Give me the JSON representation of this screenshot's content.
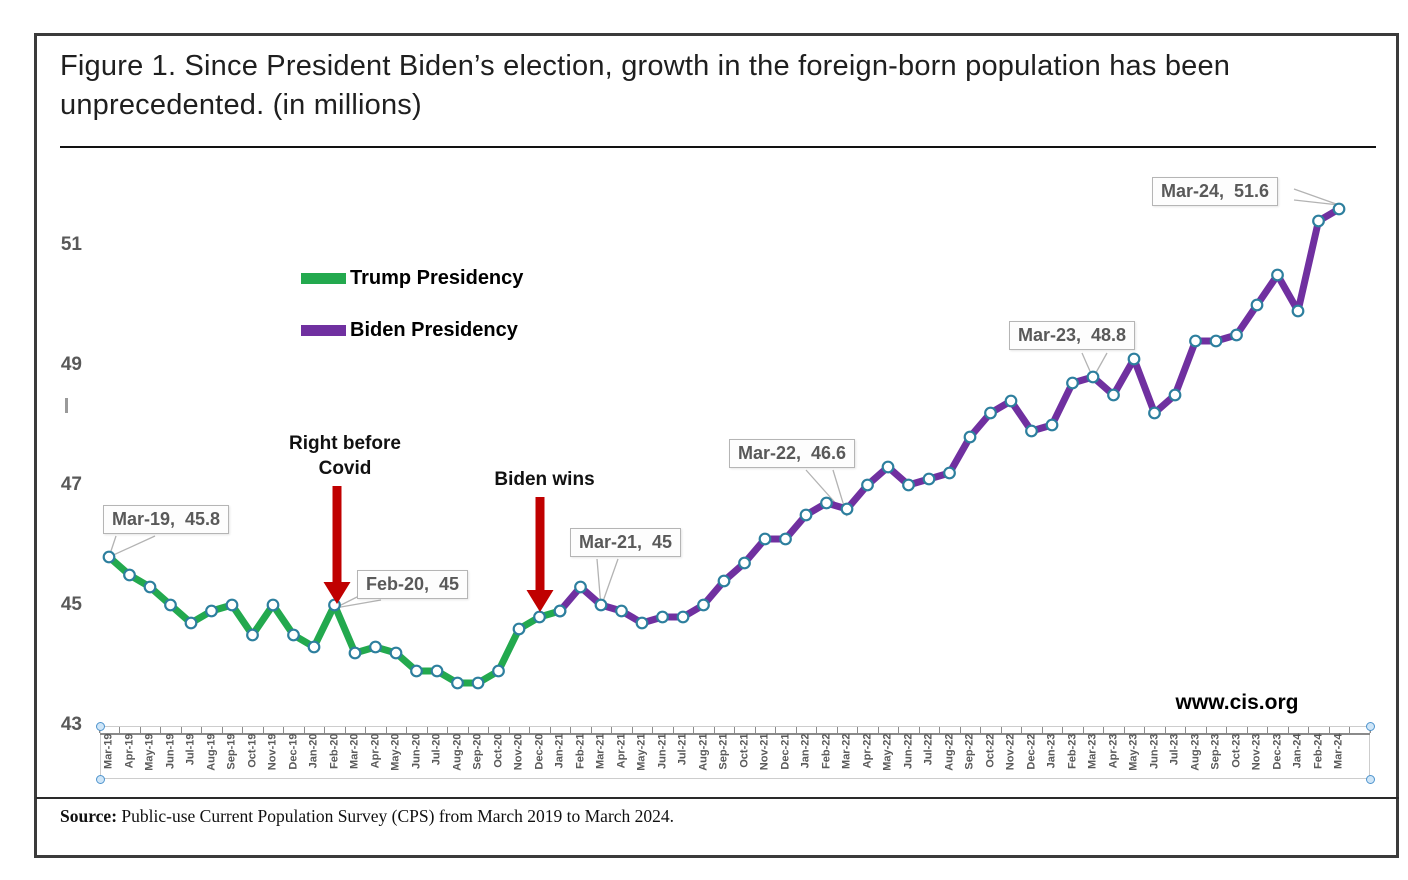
{
  "title": "Figure 1. Since President Biden’s election, growth in the foreign-born population has been unprecedented. (in millions)",
  "legend": {
    "trump_label": "Trump Presidency",
    "biden_label": "Biden Presidency"
  },
  "annotations": {
    "right_before_covid_line1": "Right before",
    "right_before_covid_line2": "Covid",
    "biden_wins": "Biden wins"
  },
  "watermark": "www.cis.org",
  "source": {
    "label": "Source:",
    "text": " Public-use Current Population Survey (CPS) from March 2019 to March 2024."
  },
  "colors": {
    "trump_green": "#23a94e",
    "biden_purple": "#7030a0",
    "arrow_red": "#c00000",
    "marker_ring": "#2d7f9e",
    "axis_text": "#595959",
    "leader_gray": "#b3b3b3"
  },
  "chart_data": {
    "type": "line",
    "title": "Figure 1. Since President Biden’s election, growth in the foreign-born population has been unprecedented. (in millions)",
    "xlabel": "",
    "ylabel": "",
    "ylim": [
      43,
      52.2
    ],
    "yticks": [
      51,
      49,
      47,
      45,
      43
    ],
    "grid": false,
    "legend_position": "upper-left-inside",
    "x": [
      "Mar-19",
      "Apr-19",
      "May-19",
      "Jun-19",
      "Jul-19",
      "Aug-19",
      "Sep-19",
      "Oct-19",
      "Nov-19",
      "Dec-19",
      "Jan-20",
      "Feb-20",
      "Mar-20",
      "Apr-20",
      "May-20",
      "Jun-20",
      "Jul-20",
      "Aug-20",
      "Sep-20",
      "Oct-20",
      "Nov-20",
      "Dec-20",
      "Jan-21",
      "Feb-21",
      "Mar-21",
      "Apr-21",
      "May-21",
      "Jun-21",
      "Jul-21",
      "Aug-21",
      "Sep-21",
      "Oct-21",
      "Nov-21",
      "Dec-21",
      "Jan-22",
      "Feb-22",
      "Mar-22",
      "Apr-22",
      "May-22",
      "Jun-22",
      "Jul-22",
      "Aug-22",
      "Sep-22",
      "Oct-22",
      "Nov-22",
      "Dec-22",
      "Jan-23",
      "Feb-23",
      "Mar-23",
      "Apr-23",
      "May-23",
      "Jun-23",
      "Jul-23",
      "Aug-23",
      "Sep-23",
      "Oct-23",
      "Nov-23",
      "Dec-23",
      "Jan-24",
      "Feb-24",
      "Mar-24"
    ],
    "series": [
      {
        "name": "Trump Presidency",
        "color": "#23a94e",
        "x_start_index": 0,
        "values": [
          45.8,
          45.5,
          45.3,
          45.0,
          44.7,
          44.9,
          45.0,
          44.5,
          45.0,
          44.5,
          44.3,
          45.0,
          44.2,
          44.3,
          44.2,
          43.9,
          43.9,
          43.7,
          43.7,
          43.9,
          44.6,
          44.8,
          44.9
        ]
      },
      {
        "name": "Biden Presidency",
        "color": "#7030a0",
        "x_start_index": 22,
        "values": [
          44.9,
          45.3,
          45.0,
          44.9,
          44.7,
          44.8,
          44.8,
          45.0,
          45.4,
          45.7,
          46.1,
          46.1,
          46.5,
          46.7,
          46.6,
          47.0,
          47.3,
          47.0,
          47.1,
          47.2,
          47.8,
          48.2,
          48.4,
          47.9,
          48.0,
          48.7,
          48.8,
          48.5,
          49.1,
          48.2,
          48.5,
          49.4,
          49.4,
          49.5,
          50.0,
          50.5,
          49.9,
          51.4,
          51.6
        ]
      }
    ],
    "data_labels": [
      {
        "id": "mar19",
        "month": "Mar-19",
        "value": 45.8,
        "text": "Mar-19,  45.8"
      },
      {
        "id": "feb20",
        "month": "Feb-20",
        "value": 45,
        "text": "Feb-20,  45"
      },
      {
        "id": "mar21",
        "month": "Mar-21",
        "value": 45,
        "text": "Mar-21,  45"
      },
      {
        "id": "mar22",
        "month": "Mar-22",
        "value": 46.6,
        "text": "Mar-22,  46.6"
      },
      {
        "id": "mar23",
        "month": "Mar-23",
        "value": 48.8,
        "text": "Mar-23,  48.8"
      },
      {
        "id": "mar24",
        "month": "Mar-24",
        "value": 51.6,
        "text": "Mar-24,  51.6"
      }
    ],
    "annotations": [
      {
        "text": "Right before Covid",
        "target_month": "Feb-20"
      },
      {
        "text": "Biden wins",
        "target_month": "Dec-20"
      }
    ]
  }
}
